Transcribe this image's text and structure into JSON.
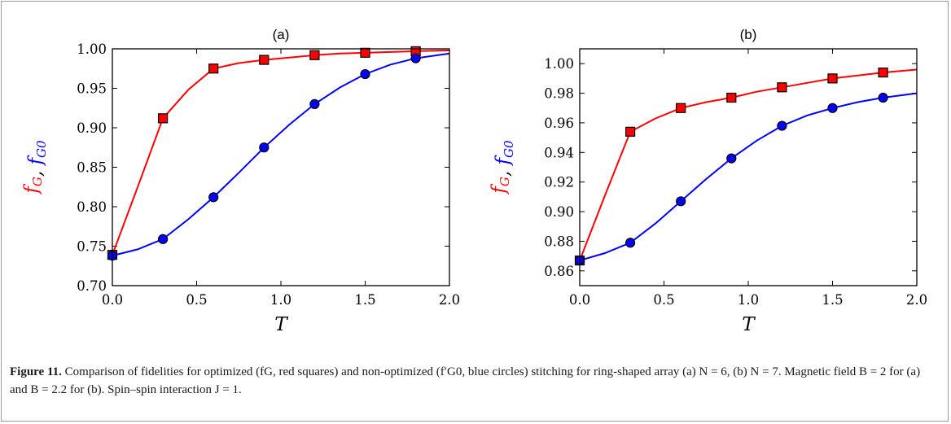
{
  "chart_data": [
    {
      "panel_label": "(a)",
      "type": "line",
      "xlabel": "T",
      "ylabel_parts": [
        "f",
        "G",
        ", ",
        "f",
        "G0"
      ],
      "xlim": [
        0.0,
        2.0
      ],
      "ylim": [
        0.7,
        1.0
      ],
      "xticks": [
        "0.0",
        "0.5",
        "1.0",
        "1.5",
        "2.0"
      ],
      "yticks": [
        "0.70",
        "0.75",
        "0.80",
        "0.85",
        "0.90",
        "0.95",
        "1.00"
      ],
      "grid": false,
      "series": [
        {
          "color": "#ff0000",
          "marker": "square",
          "marker_x": [
            0.0,
            0.3,
            0.6,
            0.9,
            1.2,
            1.5,
            1.8
          ],
          "marker_y": [
            0.739,
            0.912,
            0.975,
            0.986,
            0.992,
            0.995,
            0.997
          ],
          "x": [
            0.0,
            0.15,
            0.3,
            0.45,
            0.6,
            0.75,
            0.9,
            1.05,
            1.2,
            1.35,
            1.5,
            1.65,
            1.8,
            2.0
          ],
          "y": [
            0.739,
            0.825,
            0.912,
            0.948,
            0.975,
            0.982,
            0.986,
            0.989,
            0.992,
            0.994,
            0.995,
            0.996,
            0.997,
            0.998
          ]
        },
        {
          "color": "#0000ff",
          "marker": "circle",
          "marker_x": [
            0.0,
            0.3,
            0.6,
            0.9,
            1.2,
            1.5,
            1.8
          ],
          "marker_y": [
            0.738,
            0.759,
            0.812,
            0.875,
            0.93,
            0.968,
            0.988
          ],
          "x": [
            0.0,
            0.15,
            0.3,
            0.45,
            0.6,
            0.75,
            0.9,
            1.05,
            1.2,
            1.35,
            1.5,
            1.65,
            1.8,
            2.0
          ],
          "y": [
            0.738,
            0.746,
            0.759,
            0.784,
            0.812,
            0.843,
            0.875,
            0.904,
            0.93,
            0.951,
            0.968,
            0.98,
            0.988,
            0.994
          ]
        }
      ]
    },
    {
      "panel_label": "(b)",
      "type": "line",
      "xlabel": "T",
      "ylabel_parts": [
        "f",
        "G",
        ", ",
        "f",
        "G0"
      ],
      "xlim": [
        0.0,
        2.0
      ],
      "ylim": [
        0.85,
        1.01
      ],
      "xticks": [
        "0.0",
        "0.5",
        "1.0",
        "1.5",
        "2.0"
      ],
      "yticks": [
        "0.86",
        "0.88",
        "0.90",
        "0.92",
        "0.94",
        "0.96",
        "0.98",
        "1.00"
      ],
      "grid": false,
      "series": [
        {
          "color": "#ff0000",
          "marker": "square",
          "marker_x": [
            0.0,
            0.3,
            0.6,
            0.9,
            1.2,
            1.5,
            1.8
          ],
          "marker_y": [
            0.867,
            0.954,
            0.97,
            0.977,
            0.984,
            0.99,
            0.994
          ],
          "x": [
            0.0,
            0.15,
            0.3,
            0.45,
            0.6,
            0.75,
            0.9,
            1.05,
            1.2,
            1.35,
            1.5,
            1.65,
            1.8,
            2.0
          ],
          "y": [
            0.867,
            0.911,
            0.954,
            0.963,
            0.97,
            0.974,
            0.977,
            0.981,
            0.984,
            0.987,
            0.99,
            0.992,
            0.994,
            0.996
          ]
        },
        {
          "color": "#0000ff",
          "marker": "circle",
          "marker_x": [
            0.0,
            0.3,
            0.6,
            0.9,
            1.2,
            1.5,
            1.8
          ],
          "marker_y": [
            0.867,
            0.879,
            0.907,
            0.936,
            0.958,
            0.97,
            0.977
          ],
          "x": [
            0.0,
            0.15,
            0.3,
            0.45,
            0.6,
            0.75,
            0.9,
            1.05,
            1.2,
            1.35,
            1.5,
            1.65,
            1.8,
            2.0
          ],
          "y": [
            0.867,
            0.872,
            0.879,
            0.892,
            0.907,
            0.922,
            0.936,
            0.948,
            0.958,
            0.965,
            0.97,
            0.974,
            0.977,
            0.98
          ]
        }
      ]
    }
  ],
  "caption": {
    "label": "Figure 11.",
    "text": " Comparison of fidelities for optimized (fG, red squares) and non-optimized (f′G0, blue circles) stitching for ring-shaped array (a) N = 6, (b) N = 7. Magnetic field B = 2 for (a) and B = 2.2 for (b). Spin–spin interaction J = 1."
  }
}
